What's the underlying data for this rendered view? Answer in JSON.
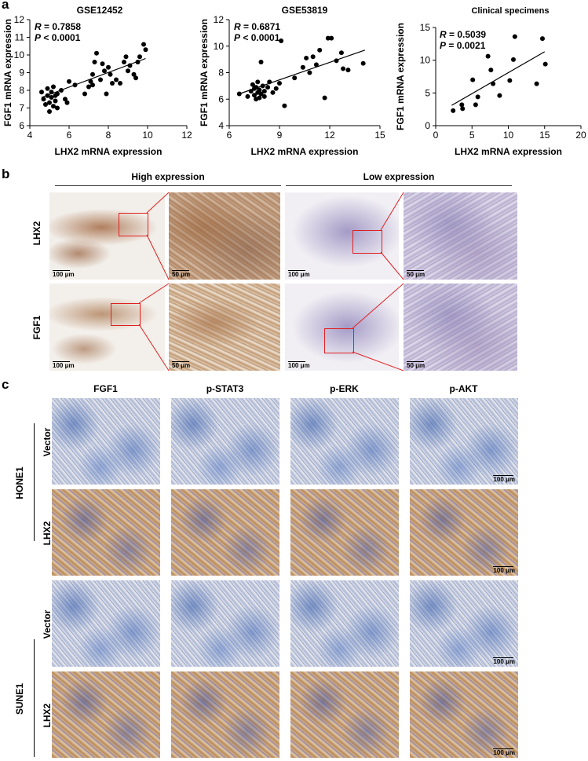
{
  "panels": {
    "a": "a",
    "b": "b",
    "c": "c"
  },
  "chart_data": [
    {
      "type": "scatter",
      "title": "GSE12452",
      "xlabel": "LHX2 mRNA expression",
      "ylabel": "FGF1 mRNA expression",
      "xlim": [
        4,
        12
      ],
      "ylim": [
        6,
        12
      ],
      "xticks": [
        4,
        6,
        8,
        10,
        12
      ],
      "yticks": [
        6,
        7,
        8,
        9,
        10,
        11,
        12
      ],
      "stats": {
        "r_label": "R",
        "r_value": " = 0.7858",
        "p_label": "P",
        "p_value": " < 0.0001"
      },
      "trendline": {
        "x": [
          4.6,
          9.9
        ],
        "y": [
          7.6,
          9.8
        ]
      },
      "points": [
        [
          4.6,
          7.9
        ],
        [
          4.7,
          7.5
        ],
        [
          4.8,
          7.2
        ],
        [
          4.9,
          8.1
        ],
        [
          4.9,
          7.7
        ],
        [
          5.0,
          7.3
        ],
        [
          5.0,
          6.8
        ],
        [
          5.1,
          7.9
        ],
        [
          5.1,
          7.6
        ],
        [
          5.2,
          8.2
        ],
        [
          5.2,
          7.1
        ],
        [
          5.3,
          7.7
        ],
        [
          5.3,
          7.4
        ],
        [
          5.4,
          7.0
        ],
        [
          5.4,
          7.8
        ],
        [
          5.6,
          8.0
        ],
        [
          5.8,
          7.5
        ],
        [
          5.9,
          7.3
        ],
        [
          6.0,
          8.5
        ],
        [
          6.3,
          8.3
        ],
        [
          6.8,
          7.8
        ],
        [
          7.0,
          8.2
        ],
        [
          7.1,
          8.5
        ],
        [
          7.2,
          8.3
        ],
        [
          7.2,
          8.9
        ],
        [
          7.3,
          9.6
        ],
        [
          7.4,
          10.1
        ],
        [
          7.6,
          8.6
        ],
        [
          7.7,
          9.5
        ],
        [
          7.8,
          9.1
        ],
        [
          7.9,
          7.8
        ],
        [
          8.0,
          9.3
        ],
        [
          8.1,
          8.9
        ],
        [
          8.2,
          8.4
        ],
        [
          8.4,
          8.6
        ],
        [
          8.6,
          8.4
        ],
        [
          8.8,
          9.6
        ],
        [
          8.9,
          9.9
        ],
        [
          9.0,
          9.1
        ],
        [
          9.1,
          9.4
        ],
        [
          9.3,
          8.9
        ],
        [
          9.4,
          8.7
        ],
        [
          9.5,
          9.6
        ],
        [
          9.6,
          9.9
        ],
        [
          9.8,
          10.6
        ],
        [
          9.9,
          10.3
        ]
      ]
    },
    {
      "type": "scatter",
      "title": "GSE53819",
      "xlabel": "LHX2 mRNA expression",
      "ylabel": "FGF1 mRNA expression",
      "xlim": [
        6,
        15
      ],
      "ylim": [
        4,
        12
      ],
      "xticks": [
        6,
        9,
        12,
        15
      ],
      "yticks": [
        4,
        6,
        8,
        10,
        12
      ],
      "stats": {
        "r_label": "R",
        "r_value": " = 0.6871",
        "p_label": "P",
        "p_value": " < 0.0001"
      },
      "trendline": {
        "x": [
          6.6,
          14.1
        ],
        "y": [
          6.4,
          9.7
        ]
      },
      "points": [
        [
          6.6,
          6.4
        ],
        [
          7.1,
          6.2
        ],
        [
          7.3,
          6.6
        ],
        [
          7.4,
          7.1
        ],
        [
          7.5,
          6.8
        ],
        [
          7.5,
          6.3
        ],
        [
          7.6,
          6.0
        ],
        [
          7.6,
          6.9
        ],
        [
          7.7,
          6.5
        ],
        [
          7.7,
          7.3
        ],
        [
          7.8,
          6.1
        ],
        [
          7.8,
          6.7
        ],
        [
          7.9,
          8.8
        ],
        [
          7.9,
          6.4
        ],
        [
          8.0,
          7.0
        ],
        [
          8.1,
          6.6
        ],
        [
          8.1,
          6.2
        ],
        [
          8.3,
          6.9
        ],
        [
          8.4,
          7.3
        ],
        [
          8.6,
          6.5
        ],
        [
          8.8,
          6.8
        ],
        [
          9.0,
          7.2
        ],
        [
          9.1,
          10.4
        ],
        [
          9.3,
          5.5
        ],
        [
          9.9,
          7.6
        ],
        [
          10.4,
          8.4
        ],
        [
          10.6,
          9.1
        ],
        [
          10.8,
          8.0
        ],
        [
          11.0,
          9.2
        ],
        [
          11.2,
          8.6
        ],
        [
          11.4,
          9.7
        ],
        [
          11.7,
          6.1
        ],
        [
          11.9,
          10.6
        ],
        [
          12.1,
          10.6
        ],
        [
          12.4,
          8.9
        ],
        [
          12.7,
          9.5
        ],
        [
          12.8,
          8.3
        ],
        [
          13.1,
          8.2
        ],
        [
          14.0,
          8.7
        ]
      ]
    },
    {
      "type": "scatter",
      "title": "Clinical specimens",
      "xlabel": "LHX2 mRNA expression",
      "ylabel": "FGF1 mRNA expression",
      "xlim": [
        0,
        20
      ],
      "ylim": [
        0,
        15
      ],
      "xticks": [
        0,
        5,
        10,
        15,
        20
      ],
      "yticks": [
        0,
        5,
        10,
        15
      ],
      "stats": {
        "r_label": "R",
        "r_value": " = 0.5039",
        "p_label": "P",
        "p_value": " = 0.0021"
      },
      "trendline": {
        "x": [
          2.2,
          15.0
        ],
        "y": [
          3.1,
          11.3
        ]
      },
      "points": [
        [
          2.4,
          2.3
        ],
        [
          3.6,
          3.2
        ],
        [
          3.7,
          2.6
        ],
        [
          5.1,
          7.0
        ],
        [
          5.5,
          3.2
        ],
        [
          5.8,
          4.4
        ],
        [
          7.2,
          10.6
        ],
        [
          7.6,
          8.5
        ],
        [
          7.9,
          6.4
        ],
        [
          8.8,
          4.6
        ],
        [
          10.2,
          6.9
        ],
        [
          10.7,
          10.1
        ],
        [
          10.9,
          13.6
        ],
        [
          13.9,
          6.4
        ],
        [
          14.7,
          13.3
        ],
        [
          15.1,
          9.4
        ]
      ]
    }
  ],
  "panel_b": {
    "group_high": "High expression",
    "group_low": "Low expression",
    "row_labels": [
      "LHX2",
      "FGF1"
    ],
    "scale_big": "100 μm",
    "scale_small": "50 μm"
  },
  "panel_c": {
    "columns": [
      "FGF1",
      "p-STAT3",
      "p-ERK",
      "p-AKT"
    ],
    "cell_lines": [
      "HONE1",
      "SUNE1"
    ],
    "conditions": [
      "Vector",
      "LHX2"
    ],
    "scale": "100 μm"
  }
}
